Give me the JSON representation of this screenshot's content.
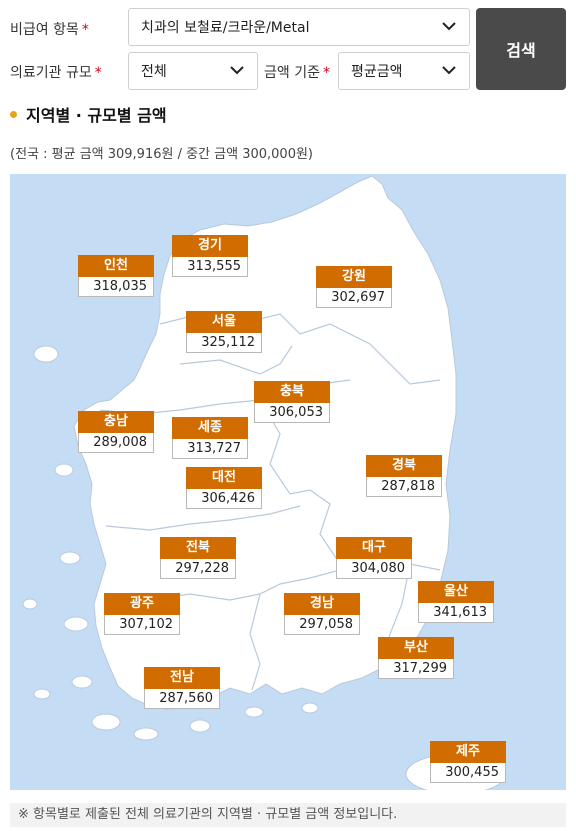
{
  "filters": {
    "item_label": "비급여 항목",
    "item_value": "치과의 보철료/크라운/Metal",
    "institution_label": "의료기관 규모",
    "institution_value": "전체",
    "price_label": "금액 기준",
    "price_value": "평균금액",
    "required_mark": "*",
    "search_label": "검색"
  },
  "section": {
    "title": "지역별 · 규모별 금액",
    "summary": "(전국 : 평균 금액 309,916원 / 중간 금액 300,000원)"
  },
  "regions": [
    {
      "name": "인천",
      "value": "318,035"
    },
    {
      "name": "경기",
      "value": "313,555"
    },
    {
      "name": "강원",
      "value": "302,697"
    },
    {
      "name": "서울",
      "value": "325,112"
    },
    {
      "name": "충북",
      "value": "306,053"
    },
    {
      "name": "충남",
      "value": "289,008"
    },
    {
      "name": "세종",
      "value": "313,727"
    },
    {
      "name": "대전",
      "value": "306,426"
    },
    {
      "name": "경북",
      "value": "287,818"
    },
    {
      "name": "전북",
      "value": "297,228"
    },
    {
      "name": "대구",
      "value": "304,080"
    },
    {
      "name": "광주",
      "value": "307,102"
    },
    {
      "name": "경남",
      "value": "297,058"
    },
    {
      "name": "울산",
      "value": "341,613"
    },
    {
      "name": "부산",
      "value": "317,299"
    },
    {
      "name": "전남",
      "value": "287,560"
    },
    {
      "name": "제주",
      "value": "300,455"
    }
  ],
  "colors": {
    "label_bg": "#d16d00",
    "sea": "#c5dcf5",
    "land": "#ffffff",
    "button_bg": "#4a4a4a"
  },
  "footnote": "※ 항목별로 제출된 전체 의료기관의 지역별 · 규모별 금액 정보입니다."
}
